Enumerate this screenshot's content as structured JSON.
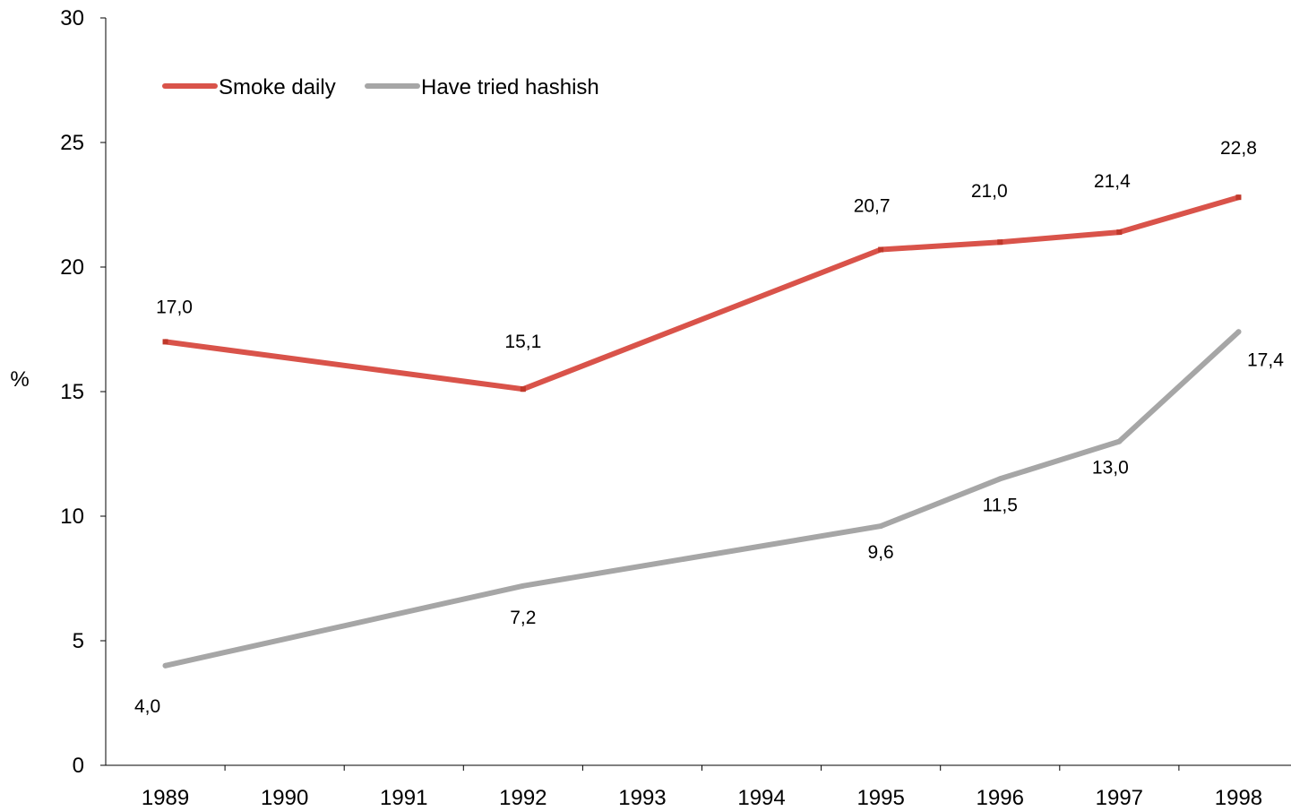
{
  "chart_data": {
    "type": "line",
    "categories": [
      "1989",
      "1990",
      "1991",
      "1992",
      "1993",
      "1994",
      "1995",
      "1996",
      "1997",
      "1998"
    ],
    "series": [
      {
        "name": "Smoke daily",
        "color": "#d9534a",
        "points": [
          {
            "x": "1989",
            "y": 17.0,
            "label": "17,0"
          },
          {
            "x": "1992",
            "y": 15.1,
            "label": "15,1"
          },
          {
            "x": "1995",
            "y": 20.7,
            "label": "20,7"
          },
          {
            "x": "1996",
            "y": 21.0,
            "label": "21,0"
          },
          {
            "x": "1997",
            "y": 21.4,
            "label": "21,4"
          },
          {
            "x": "1998",
            "y": 22.8,
            "label": "22,8"
          }
        ]
      },
      {
        "name": "Have tried hashish",
        "color": "#a6a6a6",
        "points": [
          {
            "x": "1989",
            "y": 4.0,
            "label": "4,0"
          },
          {
            "x": "1992",
            "y": 7.2,
            "label": "7,2"
          },
          {
            "x": "1995",
            "y": 9.6,
            "label": "9,6"
          },
          {
            "x": "1996",
            "y": 11.5,
            "label": "11,5"
          },
          {
            "x": "1997",
            "y": 13.0,
            "label": "13,0"
          },
          {
            "x": "1998",
            "y": 17.4,
            "label": "17,4"
          }
        ]
      }
    ],
    "ylabel": "%",
    "yticks": [
      0,
      5,
      10,
      15,
      20,
      25,
      30
    ],
    "ylim": [
      0,
      30
    ],
    "grid": false,
    "legend_position": "top-left"
  }
}
